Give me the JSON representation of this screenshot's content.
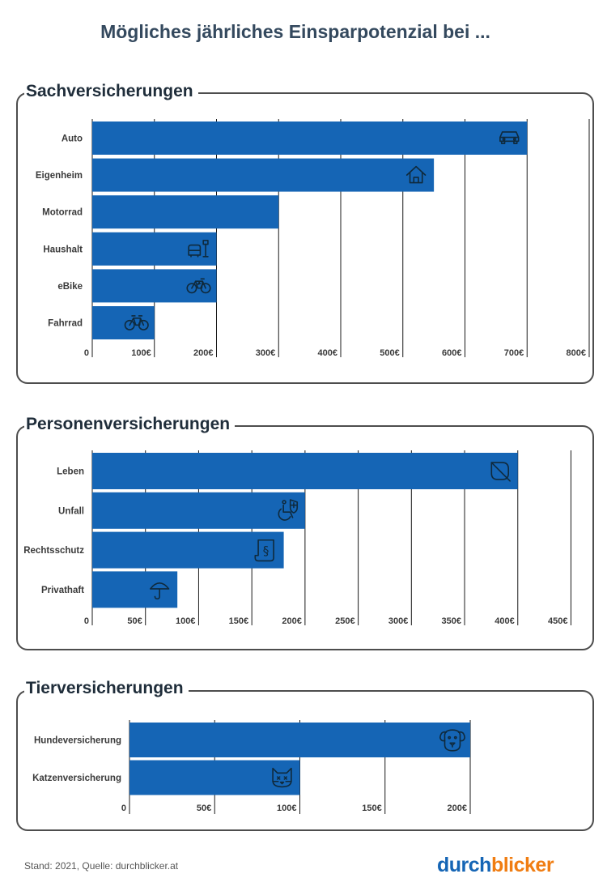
{
  "title": "Mögliches jährliches Einsparpotenzial bei ...",
  "colors": {
    "bar": "#1565b5",
    "grid": "#1a1a1a",
    "icon": "#0f2a3d",
    "logo_blue": "#1565b5",
    "logo_orange": "#f07d12"
  },
  "panels": [
    {
      "title": "Sachversicherungen"
    },
    {
      "title": "Personenversicherungen"
    },
    {
      "title": "Tierversicherungen"
    }
  ],
  "footer": "Stand: 2021, Quelle: durchblicker.at",
  "logo": {
    "part1": "durch",
    "part2": "blicker"
  },
  "chart_data": [
    {
      "type": "bar",
      "orientation": "horizontal",
      "title": "Sachversicherungen",
      "categories": [
        "Auto",
        "Eigenheim",
        "Motorrad",
        "Haushalt",
        "eBike",
        "Fahrrad"
      ],
      "values": [
        700,
        550,
        300,
        200,
        200,
        100
      ],
      "icons": [
        "car-icon",
        "house-icon",
        "",
        "armchair-lamp-icon",
        "ebike-icon",
        "bicycle-icon"
      ],
      "xlim": [
        0,
        800
      ],
      "ticks": [
        0,
        100,
        200,
        300,
        400,
        500,
        600,
        700,
        800
      ],
      "tick_labels": [
        "0",
        "100€",
        "200€",
        "300€",
        "400€",
        "500€",
        "600€",
        "700€",
        "800€"
      ],
      "grid": true
    },
    {
      "type": "bar",
      "orientation": "horizontal",
      "title": "Personenversicherungen",
      "categories": [
        "Leben",
        "Unfall",
        "Rechtsschutz",
        "Privathaft"
      ],
      "values": [
        400,
        200,
        180,
        80
      ],
      "icons": [
        "leaf-icon",
        "wheelchair-shield-icon",
        "paragraph-scroll-icon",
        "umbrella-icon"
      ],
      "xlim": [
        0,
        450
      ],
      "ticks": [
        0,
        50,
        100,
        150,
        200,
        250,
        300,
        350,
        400,
        450
      ],
      "tick_labels": [
        "0",
        "50€",
        "100€",
        "150€",
        "200€",
        "250€",
        "300€",
        "350€",
        "400€",
        "450€"
      ],
      "grid": true
    },
    {
      "type": "bar",
      "orientation": "horizontal",
      "title": "Tierversicherungen",
      "categories": [
        "Hundeversicherung",
        "Katzenversicherung"
      ],
      "values": [
        200,
        100
      ],
      "icons": [
        "dog-icon",
        "cat-icon"
      ],
      "xlim": [
        0,
        200
      ],
      "ticks": [
        0,
        50,
        100,
        150,
        200
      ],
      "tick_labels": [
        "0",
        "50€",
        "100€",
        "150€",
        "200€"
      ],
      "grid": true
    }
  ]
}
